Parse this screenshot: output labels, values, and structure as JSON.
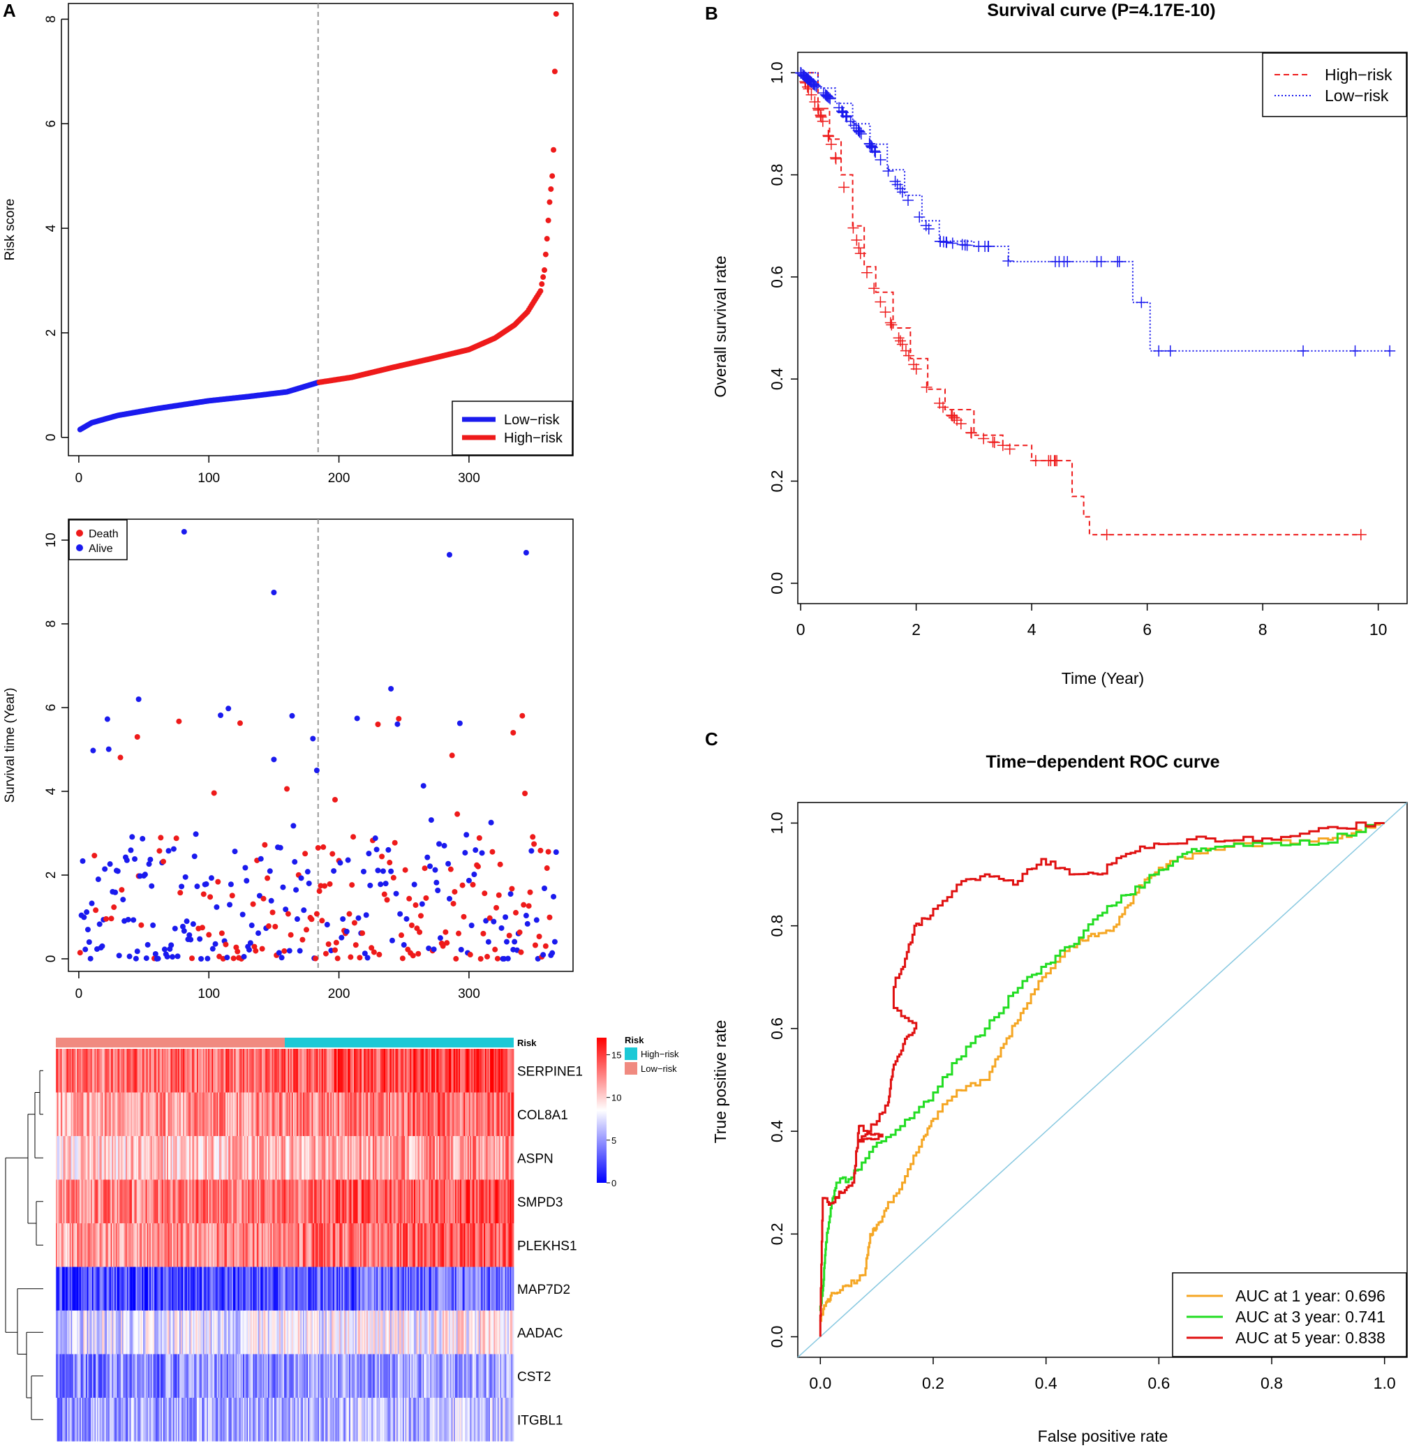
{
  "panels": {
    "A": "A",
    "B": "B",
    "C": "C"
  },
  "colors": {
    "low": "#1a1aee",
    "high": "#ee1a1a",
    "gray": "#999999",
    "teal": "#1cc9d6",
    "salmon": "#f08a80",
    "roc1": "#f5a623",
    "roc3": "#22dd22",
    "roc5": "#e01010",
    "diag": "#87c8e0"
  },
  "chart_data": [
    {
      "id": "risk_score",
      "type": "scatter",
      "title": "",
      "xlabel": "",
      "ylabel": "Risk score",
      "xlim": [
        -8,
        380
      ],
      "ylim": [
        -0.35,
        8.3
      ],
      "xticks": [
        "0",
        "100",
        "200",
        "300"
      ],
      "yticks": [
        "0",
        "2",
        "4",
        "6",
        "8"
      ],
      "cutoff_x": 184,
      "n_patients": 367,
      "legend": {
        "position": "bottom-right",
        "items": [
          "Low−risk",
          "High−risk"
        ]
      },
      "curve_anchors_x": [
        1,
        10,
        30,
        60,
        100,
        130,
        160,
        184,
        210,
        240,
        270,
        300,
        320,
        335,
        345,
        350,
        355,
        358,
        360,
        362,
        364,
        365,
        366,
        367
      ],
      "curve_anchors_y": [
        0.15,
        0.28,
        0.42,
        0.55,
        0.7,
        0.78,
        0.87,
        1.05,
        1.15,
        1.33,
        1.5,
        1.68,
        1.9,
        2.15,
        2.4,
        2.6,
        2.8,
        3.2,
        3.8,
        4.5,
        5.0,
        5.5,
        7.0,
        8.1
      ]
    },
    {
      "id": "survival_status",
      "type": "scatter",
      "title": "",
      "xlabel": "",
      "ylabel": "Survival time (Year)",
      "xlim": [
        -8,
        380
      ],
      "ylim": [
        -0.3,
        10.5
      ],
      "xticks": [
        "0",
        "100",
        "200",
        "300"
      ],
      "yticks": [
        "0",
        "2",
        "4",
        "6",
        "8",
        "10"
      ],
      "cutoff_x": 184,
      "legend": {
        "position": "top-left",
        "items": [
          "Death",
          "Alive"
        ]
      },
      "notable_points": [
        {
          "x": 81,
          "y": 10.2,
          "status": "Alive"
        },
        {
          "x": 150,
          "y": 8.75,
          "status": "Alive"
        },
        {
          "x": 285,
          "y": 9.65,
          "status": "Alive"
        },
        {
          "x": 344,
          "y": 9.7,
          "status": "Alive"
        },
        {
          "x": 46,
          "y": 6.2,
          "status": "Alive"
        },
        {
          "x": 240,
          "y": 6.45,
          "status": "Alive"
        },
        {
          "x": 45,
          "y": 5.3,
          "status": "Death"
        },
        {
          "x": 230,
          "y": 5.6,
          "status": "Death"
        },
        {
          "x": 334,
          "y": 5.4,
          "status": "Death"
        },
        {
          "x": 183,
          "y": 4.5,
          "status": "Alive"
        },
        {
          "x": 197,
          "y": 3.8,
          "status": "Death"
        }
      ]
    },
    {
      "id": "heatmap",
      "type": "heatmap",
      "title": "",
      "genes": [
        "SERPINE1",
        "COL8A1",
        "ASPN",
        "SMPD3",
        "PLEKHS1",
        "MAP7D2",
        "AADAC",
        "CST2",
        "ITGBL1"
      ],
      "gene_means": [
        14,
        12.5,
        11,
        13.5,
        13,
        3,
        8,
        5,
        6
      ],
      "annotation_label": "Risk",
      "legend_title": "Risk",
      "groups": [
        "High−risk",
        "Low−risk"
      ],
      "color_scale": {
        "min": 0,
        "max": 17,
        "ticks": [
          "15",
          "10",
          "5",
          "0"
        ]
      }
    },
    {
      "id": "km_curve",
      "type": "line",
      "title": "Survival curve (P=4.17E-10)",
      "xlabel": "Time (Year)",
      "ylabel": "Overall survival rate",
      "xlim": [
        0,
        10.5
      ],
      "ylim": [
        -0.04,
        1.04
      ],
      "xticks": [
        "0",
        "2",
        "4",
        "6",
        "8",
        "10"
      ],
      "yticks": [
        "0.0",
        "0.2",
        "0.4",
        "0.6",
        "0.8",
        "1.0"
      ],
      "legend": {
        "position": "top-right"
      },
      "series": [
        {
          "name": "High−risk",
          "style": "dashed",
          "x": [
            0,
            0.3,
            0.5,
            0.7,
            0.9,
            1.1,
            1.3,
            1.6,
            1.9,
            2.2,
            2.5,
            3.0,
            3.5,
            4.0,
            4.5,
            4.7,
            4.9,
            5.0,
            9.7
          ],
          "y": [
            1.0,
            0.93,
            0.87,
            0.8,
            0.7,
            0.62,
            0.57,
            0.5,
            0.44,
            0.38,
            0.34,
            0.29,
            0.27,
            0.24,
            0.24,
            0.17,
            0.13,
            0.095,
            0.095
          ]
        },
        {
          "name": "Low−risk",
          "style": "dotted",
          "x": [
            0,
            0.3,
            0.6,
            0.9,
            1.2,
            1.5,
            1.8,
            2.1,
            2.4,
            3.0,
            3.4,
            3.6,
            5.7,
            5.75,
            6.0,
            6.05,
            10.2
          ],
          "y": [
            1.0,
            0.97,
            0.94,
            0.9,
            0.86,
            0.81,
            0.76,
            0.71,
            0.67,
            0.66,
            0.66,
            0.63,
            0.63,
            0.55,
            0.55,
            0.455,
            0.455
          ]
        }
      ]
    },
    {
      "id": "roc_curve",
      "type": "line",
      "title": "Time−dependent ROC curve",
      "xlabel": "False positive rate",
      "ylabel": "True positive rate",
      "xlim": [
        -0.04,
        1.04
      ],
      "ylim": [
        -0.04,
        1.04
      ],
      "xticks": [
        "0.0",
        "0.2",
        "0.4",
        "0.6",
        "0.8",
        "1.0"
      ],
      "yticks": [
        "0.0",
        "0.2",
        "0.4",
        "0.6",
        "0.8",
        "1.0"
      ],
      "legend": {
        "position": "bottom-right"
      },
      "series": [
        {
          "name": "AUC at 1 year: 0.696",
          "auc": 0.696,
          "x": [
            0,
            0.01,
            0.02,
            0.05,
            0.08,
            0.09,
            0.1,
            0.12,
            0.15,
            0.18,
            0.2,
            0.25,
            0.3,
            0.33,
            0.36,
            0.4,
            0.45,
            0.48,
            0.52,
            0.55,
            0.58,
            0.62,
            0.7,
            0.8,
            0.9,
            0.95,
            1.0
          ],
          "y": [
            0.03,
            0.06,
            0.08,
            0.1,
            0.12,
            0.2,
            0.21,
            0.25,
            0.3,
            0.37,
            0.42,
            0.48,
            0.5,
            0.57,
            0.63,
            0.7,
            0.76,
            0.78,
            0.79,
            0.84,
            0.89,
            0.92,
            0.95,
            0.96,
            0.97,
            0.98,
            1.0
          ]
        },
        {
          "name": "AUC at 3 year: 0.741",
          "auc": 0.741,
          "x": [
            0,
            0.005,
            0.01,
            0.02,
            0.03,
            0.06,
            0.1,
            0.15,
            0.2,
            0.25,
            0.3,
            0.35,
            0.4,
            0.45,
            0.5,
            0.55,
            0.6,
            0.65,
            0.7,
            0.8,
            0.9,
            1.0
          ],
          "y": [
            0.05,
            0.09,
            0.17,
            0.25,
            0.3,
            0.31,
            0.37,
            0.41,
            0.46,
            0.54,
            0.6,
            0.67,
            0.72,
            0.76,
            0.82,
            0.86,
            0.9,
            0.94,
            0.95,
            0.96,
            0.96,
            1.0
          ]
        },
        {
          "name": "AUC at 5 year: 0.838",
          "auc": 0.838,
          "x": [
            0,
            0.005,
            0.02,
            0.04,
            0.06,
            0.07,
            0.11,
            0.07,
            0.09,
            0.12,
            0.13,
            0.15,
            0.17,
            0.13,
            0.13,
            0.15,
            0.17,
            0.2,
            0.25,
            0.3,
            0.35,
            0.4,
            0.45,
            0.5,
            0.55,
            0.6,
            0.7,
            0.8,
            0.9,
            1.0
          ],
          "y": [
            0.0,
            0.27,
            0.26,
            0.28,
            0.3,
            0.41,
            0.39,
            0.38,
            0.4,
            0.45,
            0.52,
            0.57,
            0.6,
            0.64,
            0.68,
            0.72,
            0.8,
            0.82,
            0.88,
            0.9,
            0.88,
            0.93,
            0.9,
            0.9,
            0.94,
            0.96,
            0.97,
            0.97,
            0.99,
            1.0
          ]
        },
        {
          "name": "reference",
          "x": [
            0,
            1
          ],
          "y": [
            0,
            1
          ]
        }
      ]
    }
  ]
}
